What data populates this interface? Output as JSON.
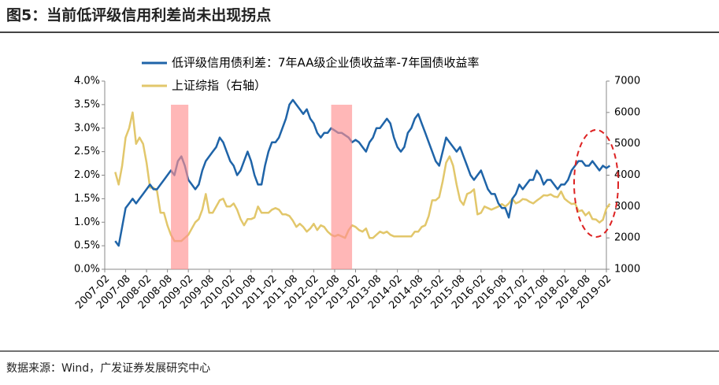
{
  "chart_data": {
    "type": "line",
    "title": "图5：当前低评级信用利差尚未出现拐点",
    "source": "数据来源：Wind，广发证券发展研究中心",
    "x": [
      "2007-02",
      "2007-03",
      "2007-04",
      "2007-05",
      "2007-06",
      "2007-07",
      "2007-08",
      "2007-09",
      "2007-10",
      "2007-11",
      "2007-12",
      "2008-01",
      "2008-02",
      "2008-03",
      "2008-04",
      "2008-05",
      "2008-06",
      "2008-07",
      "2008-08",
      "2008-09",
      "2008-10",
      "2008-11",
      "2008-12",
      "2009-01",
      "2009-02",
      "2009-03",
      "2009-04",
      "2009-05",
      "2009-06",
      "2009-07",
      "2009-08",
      "2009-09",
      "2009-10",
      "2009-11",
      "2009-12",
      "2010-01",
      "2010-02",
      "2010-03",
      "2010-04",
      "2010-05",
      "2010-06",
      "2010-07",
      "2010-08",
      "2010-09",
      "2010-10",
      "2010-11",
      "2010-12",
      "2011-01",
      "2011-02",
      "2011-03",
      "2011-04",
      "2011-05",
      "2011-06",
      "2011-07",
      "2011-08",
      "2011-09",
      "2011-10",
      "2011-11",
      "2011-12",
      "2012-01",
      "2012-02",
      "2012-03",
      "2012-04",
      "2012-05",
      "2012-06",
      "2012-07",
      "2012-08",
      "2012-09",
      "2012-10",
      "2012-11",
      "2012-12",
      "2013-01",
      "2013-02",
      "2013-03",
      "2013-04",
      "2013-05",
      "2013-06",
      "2013-07",
      "2013-08",
      "2013-09",
      "2013-10",
      "2013-11",
      "2013-12",
      "2014-01",
      "2014-02",
      "2014-03",
      "2014-04",
      "2014-05",
      "2014-06",
      "2014-07",
      "2014-08",
      "2014-09",
      "2014-10",
      "2014-11",
      "2014-12",
      "2015-01",
      "2015-02",
      "2015-03",
      "2015-04",
      "2015-05",
      "2015-06",
      "2015-07",
      "2015-08",
      "2015-09",
      "2015-10",
      "2015-11",
      "2015-12",
      "2016-01",
      "2016-02",
      "2016-03",
      "2016-04",
      "2016-05",
      "2016-06",
      "2016-07",
      "2016-08",
      "2016-09",
      "2016-10",
      "2016-11",
      "2016-12",
      "2017-01",
      "2017-02",
      "2017-03",
      "2017-04",
      "2017-05",
      "2017-06",
      "2017-07",
      "2017-08",
      "2017-09",
      "2017-10",
      "2017-11",
      "2017-12",
      "2018-01",
      "2018-02",
      "2018-03",
      "2018-04",
      "2018-05",
      "2018-06",
      "2018-07",
      "2018-08",
      "2018-09",
      "2018-10",
      "2018-11",
      "2018-12",
      "2019-01",
      "2019-02",
      "2019-03"
    ],
    "xticks": [
      "2007-02",
      "2007-08",
      "2008-02",
      "2008-08",
      "2009-02",
      "2009-08",
      "2010-02",
      "2010-08",
      "2011-02",
      "2011-08",
      "2012-02",
      "2012-08",
      "2013-02",
      "2013-08",
      "2014-02",
      "2014-08",
      "2015-02",
      "2015-08",
      "2016-02",
      "2016-08",
      "2017-02",
      "2017-08",
      "2018-02",
      "2018-08",
      "2019-02"
    ],
    "series": [
      {
        "name": "低评级信用债利差：7年AA级企业债收益率-7年国债收益率",
        "color": "#1f64a8",
        "axis": "y",
        "values": [
          null,
          null,
          null,
          0.6,
          0.5,
          0.9,
          1.3,
          1.4,
          1.5,
          1.4,
          1.5,
          1.6,
          1.7,
          1.8,
          1.7,
          1.7,
          1.8,
          1.9,
          2.0,
          2.1,
          2.0,
          2.3,
          2.4,
          2.2,
          1.9,
          1.8,
          1.7,
          1.8,
          2.1,
          2.3,
          2.4,
          2.5,
          2.6,
          2.8,
          2.7,
          2.5,
          2.3,
          2.2,
          2.0,
          2.1,
          2.3,
          2.5,
          2.3,
          2.0,
          1.8,
          1.8,
          2.2,
          2.5,
          2.7,
          2.7,
          2.8,
          3.0,
          3.2,
          3.5,
          3.6,
          3.5,
          3.4,
          3.3,
          3.4,
          3.2,
          3.1,
          2.9,
          2.8,
          2.9,
          2.9,
          3.0,
          2.95,
          2.9,
          2.9,
          2.85,
          2.8,
          2.7,
          2.75,
          2.7,
          2.6,
          2.5,
          2.7,
          2.8,
          3.0,
          3.0,
          3.1,
          3.2,
          3.1,
          2.8,
          2.6,
          2.5,
          2.6,
          2.9,
          3.0,
          3.2,
          3.3,
          3.1,
          2.9,
          2.7,
          2.5,
          2.3,
          2.2,
          2.5,
          2.8,
          2.7,
          2.6,
          2.5,
          2.6,
          2.4,
          2.2,
          2.0,
          1.9,
          2.0,
          2.1,
          1.9,
          1.7,
          1.6,
          1.6,
          1.4,
          1.3,
          1.3,
          1.1,
          1.5,
          1.6,
          1.8,
          1.7,
          1.8,
          1.9,
          1.9,
          2.1,
          2.0,
          1.8,
          1.9,
          1.9,
          1.8,
          1.7,
          1.8,
          1.8,
          1.9,
          2.1,
          2.2,
          2.3,
          2.3,
          2.2,
          2.2,
          2.3,
          2.2,
          2.1,
          2.2,
          2.15,
          2.2
        ]
      },
      {
        "name": "上证综指（右轴）",
        "color": "#e2c76b",
        "axis": "y2",
        "values": [
          null,
          null,
          null,
          4100,
          3700,
          4300,
          5200,
          5500,
          6000,
          5000,
          5200,
          5000,
          4400,
          3600,
          3600,
          3500,
          2800,
          2800,
          2400,
          2100,
          1900,
          1900,
          1900,
          2000,
          2100,
          2300,
          2500,
          2600,
          2900,
          3400,
          2800,
          2800,
          3000,
          3200,
          3250,
          3000,
          3000,
          3100,
          2900,
          2600,
          2400,
          2600,
          2600,
          2650,
          3000,
          2800,
          2800,
          2800,
          2900,
          2950,
          2900,
          2750,
          2750,
          2700,
          2550,
          2350,
          2450,
          2350,
          2200,
          2300,
          2450,
          2250,
          2400,
          2350,
          2200,
          2100,
          2050,
          2100,
          2050,
          2000,
          2250,
          2400,
          2350,
          2250,
          2200,
          2300,
          2000,
          2000,
          2100,
          2200,
          2150,
          2200,
          2100,
          2050,
          2050,
          2050,
          2050,
          2050,
          2050,
          2200,
          2200,
          2350,
          2400,
          2700,
          3200,
          3200,
          3300,
          3800,
          4400,
          4600,
          4300,
          3700,
          3200,
          3050,
          3400,
          3450,
          3550,
          2750,
          2800,
          3000,
          2950,
          2900,
          2950,
          3000,
          3080,
          3000,
          3100,
          3250,
          3100,
          3150,
          3240,
          3220,
          3150,
          3100,
          3190,
          3270,
          3360,
          3350,
          3390,
          3320,
          3300,
          3480,
          3250,
          3160,
          3080,
          3100,
          2850,
          2880,
          2720,
          2820,
          2600,
          2590,
          2490,
          2580,
          2940,
          3090
        ]
      }
    ],
    "ylim": [
      0,
      4.0
    ],
    "yticks": [
      {
        "value": 0,
        "label": "0.0%"
      },
      {
        "value": 0.5,
        "label": "0.5%"
      },
      {
        "value": 1.0,
        "label": "1.0%"
      },
      {
        "value": 1.5,
        "label": "1.5%"
      },
      {
        "value": 2.0,
        "label": "2.0%"
      },
      {
        "value": 2.5,
        "label": "2.5%"
      },
      {
        "value": 3.0,
        "label": "3.0%"
      },
      {
        "value": 3.5,
        "label": "3.5%"
      },
      {
        "value": 4.0,
        "label": "4.0%"
      }
    ],
    "y2lim": [
      1000,
      7000
    ],
    "y2ticks": [
      1000,
      2000,
      3000,
      4000,
      5000,
      6000,
      7000
    ],
    "shaded_periods": [
      {
        "start": "2008-09",
        "end": "2009-02"
      },
      {
        "start": "2012-07",
        "end": "2013-01"
      }
    ],
    "shade_color": "#ff9090",
    "grid": false
  }
}
